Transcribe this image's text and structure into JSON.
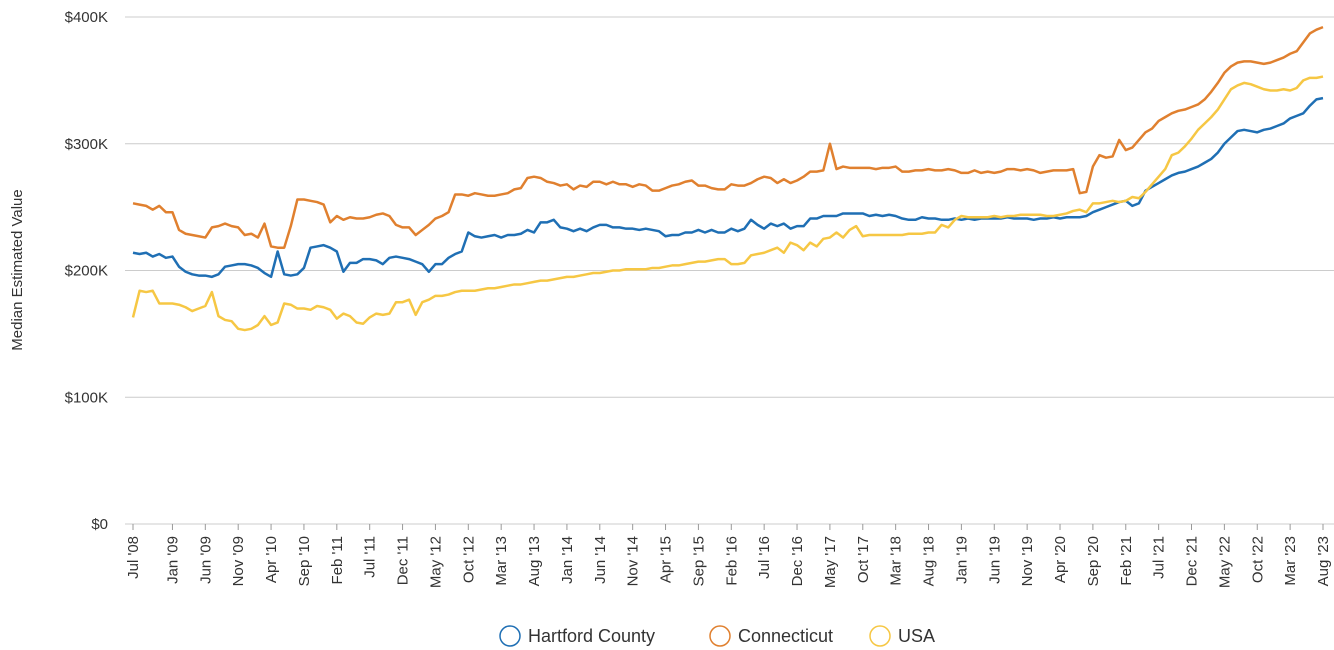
{
  "chart_data": {
    "type": "line",
    "y_label": "Median Estimated Value",
    "categories": [
      "Jul '08",
      null,
      null,
      null,
      null,
      null,
      "Jan '09",
      null,
      null,
      null,
      null,
      "Jun '09",
      null,
      null,
      null,
      null,
      "Nov '09",
      null,
      null,
      null,
      null,
      "Apr '10",
      null,
      null,
      null,
      null,
      "Sep '10",
      null,
      null,
      null,
      null,
      "Feb '11",
      null,
      null,
      null,
      null,
      "Jul '11",
      null,
      null,
      null,
      null,
      "Dec '11",
      null,
      null,
      null,
      null,
      "May '12",
      null,
      null,
      null,
      null,
      "Oct '12",
      null,
      null,
      null,
      null,
      "Mar '13",
      null,
      null,
      null,
      null,
      "Aug '13",
      null,
      null,
      null,
      null,
      "Jan '14",
      null,
      null,
      null,
      null,
      "Jun '14",
      null,
      null,
      null,
      null,
      "Nov '14",
      null,
      null,
      null,
      null,
      "Apr '15",
      null,
      null,
      null,
      null,
      "Sep '15",
      null,
      null,
      null,
      null,
      "Feb '16",
      null,
      null,
      null,
      null,
      "Jul '16",
      null,
      null,
      null,
      null,
      "Dec '16",
      null,
      null,
      null,
      null,
      "May '17",
      null,
      null,
      null,
      null,
      "Oct '17",
      null,
      null,
      null,
      null,
      "Mar '18",
      null,
      null,
      null,
      null,
      "Aug '18",
      null,
      null,
      null,
      null,
      "Jan '19",
      null,
      null,
      null,
      null,
      "Jun '19",
      null,
      null,
      null,
      null,
      "Nov '19",
      null,
      null,
      null,
      null,
      "Apr '20",
      null,
      null,
      null,
      null,
      "Sep '20",
      null,
      null,
      null,
      null,
      "Feb '21",
      null,
      null,
      null,
      null,
      "Jul '21",
      null,
      null,
      null,
      null,
      "Dec '21",
      null,
      null,
      null,
      null,
      "May '22",
      null,
      null,
      null,
      null,
      "Oct '22",
      null,
      null,
      null,
      null,
      "Mar '23",
      null,
      null,
      null,
      null,
      "Aug '23"
    ],
    "series": [
      {
        "name": "Hartford County",
        "color": "#1f6fb4",
        "values": [
          214000,
          213000,
          214000,
          211000,
          213000,
          210000,
          211000,
          203000,
          199000,
          197000,
          196000,
          196000,
          195000,
          197000,
          203000,
          204000,
          205000,
          205000,
          204000,
          202000,
          198000,
          195000,
          215000,
          197000,
          196000,
          197000,
          202000,
          218000,
          219000,
          220000,
          218000,
          215000,
          199000,
          206000,
          206000,
          209000,
          209000,
          208000,
          205000,
          210000,
          211000,
          210000,
          209000,
          207000,
          205000,
          199000,
          205000,
          205000,
          210000,
          213000,
          215000,
          230000,
          227000,
          226000,
          227000,
          228000,
          226000,
          228000,
          228000,
          229000,
          232000,
          230000,
          238000,
          238000,
          240000,
          234000,
          233000,
          231000,
          233000,
          231000,
          234000,
          236000,
          236000,
          234000,
          234000,
          233000,
          233000,
          232000,
          233000,
          232000,
          231000,
          227000,
          228000,
          228000,
          230000,
          230000,
          232000,
          230000,
          232000,
          230000,
          230000,
          233000,
          231000,
          233000,
          240000,
          236000,
          233000,
          237000,
          235000,
          237000,
          233000,
          235000,
          235000,
          241000,
          241000,
          243000,
          243000,
          243000,
          245000,
          245000,
          245000,
          245000,
          243000,
          244000,
          243000,
          244000,
          243000,
          241000,
          240000,
          240000,
          242000,
          241000,
          241000,
          240000,
          240000,
          241000,
          240000,
          241000,
          240000,
          241000,
          241000,
          241000,
          241000,
          242000,
          241000,
          241000,
          241000,
          240000,
          241000,
          241000,
          242000,
          241000,
          242000,
          242000,
          242000,
          243000,
          246000,
          248000,
          250000,
          252000,
          254000,
          255000,
          251000,
          253000,
          263000,
          266000,
          269000,
          272000,
          275000,
          277000,
          278000,
          280000,
          282000,
          285000,
          288000,
          293000,
          300000,
          305000,
          310000,
          311000,
          310000,
          309000,
          311000,
          312000,
          314000,
          316000,
          320000,
          322000,
          324000,
          330000,
          335000,
          336000
        ]
      },
      {
        "name": "Connecticut",
        "color": "#e0802f",
        "values": [
          253000,
          252000,
          251000,
          248000,
          251000,
          246000,
          246000,
          232000,
          229000,
          228000,
          227000,
          226000,
          234000,
          235000,
          237000,
          235000,
          234000,
          228000,
          229000,
          226000,
          237000,
          219000,
          218000,
          218000,
          235000,
          256000,
          256000,
          255000,
          254000,
          252000,
          238000,
          243000,
          240000,
          242000,
          241000,
          241000,
          242000,
          244000,
          245000,
          243000,
          236000,
          234000,
          234000,
          228000,
          232000,
          236000,
          241000,
          243000,
          246000,
          260000,
          260000,
          259000,
          261000,
          260000,
          259000,
          259000,
          260000,
          261000,
          264000,
          265000,
          273000,
          274000,
          273000,
          270000,
          269000,
          267000,
          268000,
          264000,
          267000,
          266000,
          270000,
          270000,
          268000,
          270000,
          268000,
          268000,
          266000,
          268000,
          267000,
          263000,
          263000,
          265000,
          267000,
          268000,
          270000,
          271000,
          267000,
          267000,
          265000,
          264000,
          264000,
          268000,
          267000,
          267000,
          269000,
          272000,
          274000,
          273000,
          269000,
          272000,
          269000,
          271000,
          274000,
          278000,
          278000,
          279000,
          300000,
          280000,
          282000,
          281000,
          281000,
          281000,
          281000,
          280000,
          281000,
          281000,
          282000,
          278000,
          278000,
          279000,
          279000,
          280000,
          279000,
          279000,
          280000,
          279000,
          277000,
          277000,
          279000,
          277000,
          278000,
          277000,
          278000,
          280000,
          280000,
          279000,
          280000,
          279000,
          277000,
          278000,
          279000,
          279000,
          279000,
          280000,
          261000,
          262000,
          282000,
          291000,
          289000,
          290000,
          303000,
          295000,
          297000,
          303000,
          309000,
          312000,
          318000,
          321000,
          324000,
          326000,
          327000,
          329000,
          331000,
          335000,
          341000,
          348000,
          356000,
          361000,
          364000,
          365000,
          365000,
          364000,
          363000,
          364000,
          366000,
          368000,
          371000,
          373000,
          380000,
          387000,
          390000,
          392000
        ]
      },
      {
        "name": "USA",
        "color": "#f6c744",
        "values": [
          163000,
          184000,
          183000,
          184000,
          174000,
          174000,
          174000,
          173000,
          171000,
          168000,
          170000,
          172000,
          183000,
          164000,
          161000,
          160000,
          154000,
          153000,
          154000,
          157000,
          164000,
          157000,
          159000,
          174000,
          173000,
          170000,
          170000,
          169000,
          172000,
          171000,
          169000,
          162000,
          166000,
          164000,
          159000,
          158000,
          163000,
          166000,
          165000,
          166000,
          175000,
          175000,
          177000,
          165000,
          175000,
          177000,
          180000,
          180000,
          181000,
          183000,
          184000,
          184000,
          184000,
          185000,
          186000,
          186000,
          187000,
          188000,
          189000,
          189000,
          190000,
          191000,
          192000,
          192000,
          193000,
          194000,
          195000,
          195000,
          196000,
          197000,
          198000,
          198000,
          199000,
          200000,
          200000,
          201000,
          201000,
          201000,
          201000,
          202000,
          202000,
          203000,
          204000,
          204000,
          205000,
          206000,
          207000,
          207000,
          208000,
          209000,
          209000,
          205000,
          205000,
          206000,
          212000,
          213000,
          214000,
          216000,
          218000,
          214000,
          222000,
          220000,
          216000,
          222000,
          219000,
          225000,
          226000,
          230000,
          226000,
          232000,
          235000,
          227000,
          228000,
          228000,
          228000,
          228000,
          228000,
          228000,
          229000,
          229000,
          229000,
          230000,
          230000,
          236000,
          234000,
          240000,
          243000,
          242000,
          242000,
          242000,
          242000,
          243000,
          242000,
          243000,
          243000,
          244000,
          244000,
          244000,
          244000,
          243000,
          243000,
          244000,
          245000,
          247000,
          248000,
          246000,
          253000,
          253000,
          254000,
          255000,
          254000,
          255000,
          258000,
          257000,
          262000,
          268000,
          274000,
          280000,
          291000,
          293000,
          298000,
          304000,
          311000,
          316000,
          321000,
          327000,
          335000,
          343000,
          346000,
          348000,
          347000,
          345000,
          343000,
          342000,
          342000,
          343000,
          342000,
          344000,
          350000,
          352000,
          352000,
          353000
        ]
      }
    ],
    "ylim": [
      0,
      400000
    ],
    "yticks": [
      {
        "value": 0,
        "label": "$0"
      },
      {
        "value": 100000,
        "label": "$100K"
      },
      {
        "value": 200000,
        "label": "$200K"
      },
      {
        "value": 300000,
        "label": "$300K"
      },
      {
        "value": 400000,
        "label": "$400K"
      }
    ],
    "grid": true,
    "legend": "bottom"
  }
}
